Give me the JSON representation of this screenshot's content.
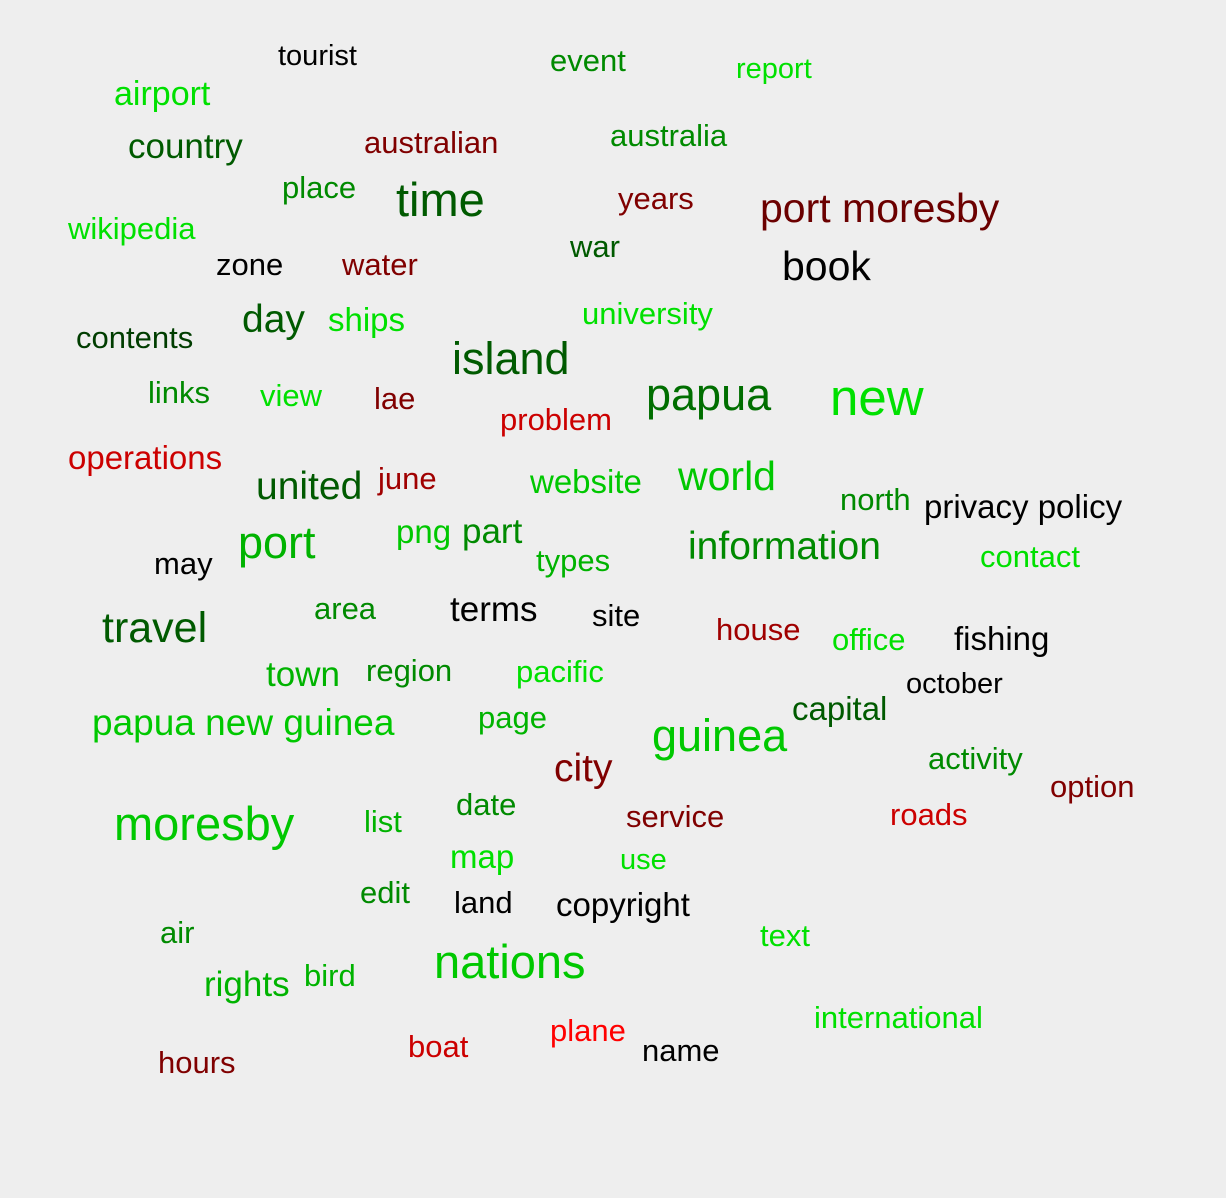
{
  "palette": {
    "black": "#000000",
    "dark_green": "#005a00",
    "green": "#008a00",
    "mid_green": "#00b300",
    "bright_green": "#00e000",
    "dark_red": "#6b0000",
    "red": "#a00000",
    "bright_red": "#e00000"
  },
  "words": [
    {
      "text": "tourist",
      "color": "#000000"
    },
    {
      "text": "event",
      "color": "#008a00"
    },
    {
      "text": "report",
      "color": "#00e000"
    },
    {
      "text": "airport",
      "color": "#00e000"
    },
    {
      "text": "country",
      "color": "#005a00"
    },
    {
      "text": "australian",
      "color": "#800000"
    },
    {
      "text": "australia",
      "color": "#008a00"
    },
    {
      "text": "place",
      "color": "#008a00"
    },
    {
      "text": "time",
      "color": "#005a00"
    },
    {
      "text": "years",
      "color": "#800000"
    },
    {
      "text": "port moresby",
      "color": "#6b0000"
    },
    {
      "text": "wikipedia",
      "color": "#00e000"
    },
    {
      "text": "zone",
      "color": "#000000"
    },
    {
      "text": "water",
      "color": "#800000"
    },
    {
      "text": "war",
      "color": "#005a00"
    },
    {
      "text": "book",
      "color": "#000000"
    },
    {
      "text": "contents",
      "color": "#003d00"
    },
    {
      "text": "day",
      "color": "#005a00"
    },
    {
      "text": "ships",
      "color": "#00e000"
    },
    {
      "text": "university",
      "color": "#00e000"
    },
    {
      "text": "island",
      "color": "#005a00"
    },
    {
      "text": "links",
      "color": "#008a00"
    },
    {
      "text": "view",
      "color": "#00e000"
    },
    {
      "text": "lae",
      "color": "#800000"
    },
    {
      "text": "papua",
      "color": "#006e00"
    },
    {
      "text": "new",
      "color": "#00e000"
    },
    {
      "text": "problem",
      "color": "#cc0000"
    },
    {
      "text": "operations",
      "color": "#cc0000"
    },
    {
      "text": "united",
      "color": "#005a00"
    },
    {
      "text": "june",
      "color": "#a00000"
    },
    {
      "text": "website",
      "color": "#00c800"
    },
    {
      "text": "world",
      "color": "#00c800"
    },
    {
      "text": "north",
      "color": "#008a00"
    },
    {
      "text": "privacy policy",
      "color": "#000000"
    },
    {
      "text": "port",
      "color": "#00b300"
    },
    {
      "text": "png",
      "color": "#00c800"
    },
    {
      "text": "part",
      "color": "#008a00"
    },
    {
      "text": "types",
      "color": "#00b300"
    },
    {
      "text": "information",
      "color": "#008a00"
    },
    {
      "text": "contact",
      "color": "#00e000"
    },
    {
      "text": "may",
      "color": "#000000"
    },
    {
      "text": "travel",
      "color": "#005a00"
    },
    {
      "text": "area",
      "color": "#008a00"
    },
    {
      "text": "terms",
      "color": "#000000"
    },
    {
      "text": "site",
      "color": "#000000"
    },
    {
      "text": "house",
      "color": "#a00000"
    },
    {
      "text": "office",
      "color": "#00e000"
    },
    {
      "text": "fishing",
      "color": "#000000"
    },
    {
      "text": "town",
      "color": "#00b300"
    },
    {
      "text": "region",
      "color": "#008a00"
    },
    {
      "text": "pacific",
      "color": "#00e000"
    },
    {
      "text": "october",
      "color": "#000000"
    },
    {
      "text": "capital",
      "color": "#005a00"
    },
    {
      "text": "papua new guinea",
      "color": "#00c800"
    },
    {
      "text": "page",
      "color": "#00b300"
    },
    {
      "text": "guinea",
      "color": "#00c800"
    },
    {
      "text": "activity",
      "color": "#008a00"
    },
    {
      "text": "city",
      "color": "#800000"
    },
    {
      "text": "option",
      "color": "#800000"
    },
    {
      "text": "moresby",
      "color": "#00c800"
    },
    {
      "text": "list",
      "color": "#00b300"
    },
    {
      "text": "date",
      "color": "#008a00"
    },
    {
      "text": "service",
      "color": "#800000"
    },
    {
      "text": "roads",
      "color": "#cc0000"
    },
    {
      "text": "map",
      "color": "#00e000"
    },
    {
      "text": "use",
      "color": "#00e000"
    },
    {
      "text": "edit",
      "color": "#008a00"
    },
    {
      "text": "land",
      "color": "#000000"
    },
    {
      "text": "copyright",
      "color": "#000000"
    },
    {
      "text": "air",
      "color": "#008a00"
    },
    {
      "text": "text",
      "color": "#00e000"
    },
    {
      "text": "nations",
      "color": "#00c800"
    },
    {
      "text": "rights",
      "color": "#00b300"
    },
    {
      "text": "bird",
      "color": "#00b300"
    },
    {
      "text": "international",
      "color": "#00e000"
    },
    {
      "text": "boat",
      "color": "#cc0000"
    },
    {
      "text": "plane",
      "color": "#ff0000"
    },
    {
      "text": "name",
      "color": "#000000"
    },
    {
      "text": "hours",
      "color": "#800000"
    }
  ]
}
